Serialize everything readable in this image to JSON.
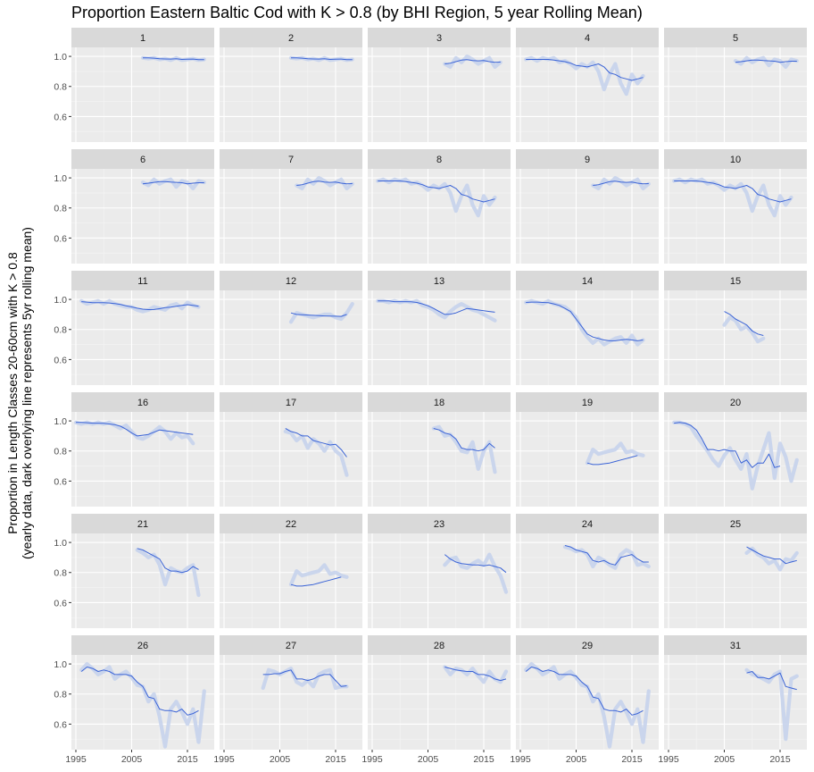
{
  "chart_data": {
    "type": "line",
    "title": "Proportion Eastern Baltic Cod with K > 0.8 (by BHI Region, 5 year Rolling Mean)",
    "ylabel_lines": [
      "Proportion in Length Classes 20-60cm with K > 0.8",
      "(yearly data, dark overlying line represents 5yr rolling  mean)"
    ],
    "xlabel": "",
    "x_ticks": [
      1995,
      2005,
      2015
    ],
    "y_ticks": [
      0.6,
      0.8,
      1.0
    ],
    "y_tick_labels": [
      "0.6",
      "0.8",
      "1.0"
    ],
    "xlim": [
      1994.2,
      2019.8
    ],
    "ylim": [
      0.43,
      1.06
    ],
    "grid": true,
    "series_style": {
      "yearly": "#c6d3ec",
      "rolling_mean": "#3a63d6"
    },
    "panels": [
      {
        "label": "1",
        "start": 2007,
        "yearly": [
          0.99,
          0.985,
          0.99,
          0.98,
          0.985,
          0.975,
          0.99,
          0.975,
          0.98,
          0.985,
          0.975,
          0.98
        ],
        "rolling": [
          0.99,
          0.99,
          0.988,
          0.984,
          0.983,
          0.982,
          0.984,
          0.98,
          0.981,
          0.982,
          0.978,
          0.978
        ]
      },
      {
        "label": "2",
        "start": 2007,
        "yearly": [
          0.99,
          0.985,
          0.99,
          0.98,
          0.985,
          0.975,
          0.99,
          0.975,
          0.98,
          0.985,
          0.975,
          0.98
        ],
        "rolling": [
          0.99,
          0.99,
          0.988,
          0.984,
          0.983,
          0.982,
          0.984,
          0.98,
          0.981,
          0.982,
          0.978,
          0.978
        ]
      },
      {
        "label": "3",
        "start": 2008,
        "yearly": [
          0.95,
          0.93,
          0.99,
          0.96,
          1.0,
          0.98,
          0.95,
          0.97,
          0.99,
          0.93,
          0.96
        ],
        "rolling": [
          0.95,
          0.955,
          0.965,
          0.975,
          0.978,
          0.972,
          0.97,
          0.972,
          0.965,
          0.96,
          0.962
        ]
      },
      {
        "label": "4",
        "start": 1996,
        "yearly": [
          0.98,
          0.99,
          0.97,
          0.99,
          0.98,
          0.99,
          0.96,
          0.97,
          0.95,
          0.92,
          0.95,
          0.93,
          0.96,
          0.9,
          0.78,
          0.88,
          0.95,
          0.82,
          0.75,
          0.88,
          0.82,
          0.87
        ],
        "rolling": [
          0.98,
          0.98,
          0.98,
          0.98,
          0.98,
          0.975,
          0.97,
          0.965,
          0.955,
          0.94,
          0.935,
          0.93,
          0.94,
          0.95,
          0.93,
          0.89,
          0.88,
          0.86,
          0.85,
          0.84,
          0.85,
          0.86
        ]
      },
      {
        "label": "5",
        "start": 2007,
        "yearly": [
          0.97,
          0.95,
          0.99,
          0.96,
          0.98,
          0.99,
          0.94,
          0.98,
          0.97,
          0.93,
          0.98,
          0.97
        ],
        "rolling": [
          0.96,
          0.965,
          0.97,
          0.975,
          0.975,
          0.972,
          0.97,
          0.968,
          0.96,
          0.965,
          0.968,
          0.968
        ]
      },
      {
        "label": "6",
        "start": 2007,
        "yearly": [
          0.97,
          0.95,
          0.99,
          0.96,
          0.98,
          0.99,
          0.94,
          0.98,
          0.97,
          0.93,
          0.98,
          0.97
        ],
        "rolling": [
          0.96,
          0.965,
          0.97,
          0.975,
          0.975,
          0.972,
          0.97,
          0.968,
          0.96,
          0.965,
          0.968,
          0.968
        ]
      },
      {
        "label": "7",
        "start": 2008,
        "yearly": [
          0.95,
          0.93,
          0.99,
          0.96,
          1.0,
          0.98,
          0.95,
          0.97,
          0.99,
          0.93,
          0.96
        ],
        "rolling": [
          0.95,
          0.955,
          0.965,
          0.975,
          0.978,
          0.972,
          0.97,
          0.972,
          0.965,
          0.96,
          0.962
        ]
      },
      {
        "label": "8",
        "start": 1996,
        "yearly": [
          0.98,
          0.99,
          0.97,
          0.99,
          0.98,
          0.99,
          0.96,
          0.97,
          0.95,
          0.92,
          0.95,
          0.93,
          0.96,
          0.9,
          0.78,
          0.88,
          0.95,
          0.82,
          0.75,
          0.88,
          0.82,
          0.87
        ],
        "rolling": [
          0.98,
          0.98,
          0.98,
          0.98,
          0.98,
          0.975,
          0.97,
          0.965,
          0.955,
          0.94,
          0.935,
          0.93,
          0.94,
          0.95,
          0.93,
          0.89,
          0.88,
          0.86,
          0.85,
          0.84,
          0.85,
          0.86
        ]
      },
      {
        "label": "9",
        "start": 2008,
        "yearly": [
          0.95,
          0.93,
          0.99,
          0.96,
          1.0,
          0.98,
          0.95,
          0.97,
          0.99,
          0.93,
          0.96
        ],
        "rolling": [
          0.95,
          0.955,
          0.965,
          0.975,
          0.978,
          0.972,
          0.97,
          0.972,
          0.965,
          0.96,
          0.962
        ]
      },
      {
        "label": "10",
        "start": 1996,
        "yearly": [
          0.98,
          0.99,
          0.97,
          0.99,
          0.98,
          0.99,
          0.96,
          0.97,
          0.95,
          0.92,
          0.95,
          0.93,
          0.96,
          0.9,
          0.78,
          0.88,
          0.95,
          0.82,
          0.75,
          0.88,
          0.82,
          0.87
        ],
        "rolling": [
          0.98,
          0.98,
          0.98,
          0.98,
          0.98,
          0.975,
          0.97,
          0.965,
          0.955,
          0.94,
          0.935,
          0.93,
          0.94,
          0.95,
          0.93,
          0.89,
          0.88,
          0.86,
          0.85,
          0.84,
          0.85,
          0.86
        ]
      },
      {
        "label": "11",
        "start": 1996,
        "yearly": [
          0.99,
          0.97,
          0.98,
          0.99,
          0.97,
          0.99,
          0.97,
          0.96,
          0.95,
          0.95,
          0.93,
          0.92,
          0.93,
          0.95,
          0.94,
          0.93,
          0.96,
          0.97,
          0.94,
          0.98,
          0.96,
          0.95
        ],
        "rolling": [
          0.985,
          0.982,
          0.978,
          0.978,
          0.978,
          0.976,
          0.972,
          0.966,
          0.958,
          0.95,
          0.942,
          0.935,
          0.932,
          0.933,
          0.938,
          0.945,
          0.948,
          0.955,
          0.96,
          0.965,
          0.96,
          0.955
        ]
      },
      {
        "label": "12",
        "start": 2007,
        "yearly": [
          0.85,
          0.91,
          0.9,
          0.89,
          0.88,
          0.89,
          0.9,
          0.9,
          0.88,
          0.87,
          0.91,
          0.97
        ],
        "rolling": [
          0.91,
          0.9,
          0.898,
          0.896,
          0.894,
          0.892,
          0.89,
          0.889,
          0.888,
          0.887,
          0.9,
          null
        ]
      },
      {
        "label": "13",
        "start": 1996,
        "yearly": [
          0.99,
          0.99,
          0.98,
          0.99,
          0.98,
          0.99,
          0.98,
          0.99,
          0.96,
          0.95,
          0.93,
          0.9,
          0.88,
          0.92,
          0.95,
          0.97,
          0.95,
          0.93,
          0.92,
          0.9,
          0.88,
          0.86
        ],
        "rolling": [
          0.99,
          0.99,
          0.99,
          0.985,
          0.985,
          0.985,
          0.984,
          0.98,
          0.97,
          0.958,
          0.94,
          0.92,
          0.9,
          0.902,
          0.91,
          0.925,
          0.94,
          0.935,
          0.93,
          0.925,
          0.92,
          0.915
        ]
      },
      {
        "label": "14",
        "start": 1996,
        "yearly": [
          0.98,
          0.99,
          0.98,
          0.97,
          0.99,
          0.97,
          0.96,
          0.95,
          0.92,
          0.88,
          0.8,
          0.75,
          0.71,
          0.74,
          0.7,
          0.72,
          0.74,
          0.75,
          0.71,
          0.76,
          0.7,
          0.73
        ],
        "rolling": [
          0.98,
          0.982,
          0.982,
          0.98,
          0.978,
          0.97,
          0.96,
          0.94,
          0.92,
          0.87,
          0.82,
          0.77,
          0.75,
          0.74,
          0.73,
          0.725,
          0.725,
          0.73,
          0.735,
          0.73,
          0.725,
          0.73
        ]
      },
      {
        "label": "15",
        "start": 2005,
        "yearly": [
          0.83,
          0.88,
          0.86,
          0.8,
          0.82,
          0.78,
          0.72,
          0.74
        ],
        "rolling": [
          0.92,
          0.9,
          0.87,
          0.85,
          0.83,
          0.79,
          0.77,
          0.76
        ]
      },
      {
        "label": "16",
        "start": 1995,
        "yearly": [
          0.99,
          0.98,
          0.99,
          0.98,
          0.99,
          0.98,
          0.99,
          0.97,
          0.95,
          0.97,
          0.93,
          0.89,
          0.88,
          0.9,
          0.93,
          0.96,
          0.93,
          0.88,
          0.92,
          0.89,
          0.9,
          0.85
        ],
        "rolling": [
          0.99,
          0.99,
          0.988,
          0.985,
          0.985,
          0.984,
          0.98,
          0.975,
          0.965,
          0.945,
          0.92,
          0.9,
          0.905,
          0.91,
          0.925,
          0.94,
          0.935,
          0.93,
          0.925,
          0.92,
          0.915,
          0.91
        ]
      },
      {
        "label": "17",
        "start": 2006,
        "yearly": [
          0.93,
          0.92,
          0.87,
          0.9,
          0.82,
          0.88,
          0.85,
          0.8,
          0.86,
          0.8,
          0.77,
          0.64
        ],
        "rolling": [
          0.95,
          0.93,
          0.92,
          0.9,
          0.9,
          0.87,
          0.86,
          0.85,
          0.84,
          0.845,
          0.81,
          0.76
        ]
      },
      {
        "label": "18",
        "start": 2006,
        "yearly": [
          0.95,
          0.96,
          0.9,
          0.91,
          0.86,
          0.8,
          0.79,
          0.86,
          0.68,
          0.8,
          0.86,
          0.66
        ],
        "rolling": [
          0.95,
          0.94,
          0.92,
          0.91,
          0.88,
          0.82,
          0.81,
          0.81,
          0.8,
          0.81,
          0.85,
          0.82
        ]
      },
      {
        "label": "19",
        "start": 2007,
        "yearly": [
          0.72,
          0.81,
          0.78,
          0.79,
          0.8,
          0.81,
          0.85,
          0.79,
          0.8,
          0.78,
          0.77
        ],
        "rolling": [
          0.72,
          0.71,
          0.71,
          0.715,
          0.72,
          0.73,
          0.74,
          0.75,
          0.76,
          0.77
        ]
      },
      {
        "label": "20",
        "start": 1996,
        "yearly": [
          0.99,
          0.99,
          0.98,
          0.96,
          0.9,
          0.85,
          0.8,
          0.74,
          0.7,
          0.77,
          0.82,
          0.74,
          0.68,
          0.78,
          0.55,
          0.7,
          0.81,
          0.92,
          0.62,
          0.85,
          0.76,
          0.6,
          0.74
        ],
        "rolling": [
          0.985,
          0.99,
          0.985,
          0.97,
          0.94,
          0.88,
          0.81,
          0.81,
          0.8,
          0.81,
          0.8,
          0.8,
          0.72,
          0.74,
          0.69,
          0.72,
          0.72,
          0.78,
          0.69,
          0.7
        ]
      },
      {
        "label": "21",
        "start": 2006,
        "yearly": [
          0.95,
          0.93,
          0.9,
          0.92,
          0.85,
          0.72,
          0.83,
          0.81,
          0.8,
          0.83,
          0.85,
          0.65
        ],
        "rolling": [
          0.96,
          0.95,
          0.93,
          0.91,
          0.89,
          0.83,
          0.81,
          0.81,
          0.8,
          0.81,
          0.84,
          0.82
        ]
      },
      {
        "label": "22",
        "start": 2007,
        "yearly": [
          0.72,
          0.81,
          0.78,
          0.79,
          0.8,
          0.81,
          0.85,
          0.79,
          0.8,
          0.78,
          0.77
        ],
        "rolling": [
          0.72,
          0.71,
          0.71,
          0.715,
          0.72,
          0.73,
          0.74,
          0.75,
          0.76,
          0.77
        ]
      },
      {
        "label": "23",
        "start": 2008,
        "yearly": [
          0.85,
          0.89,
          0.9,
          0.84,
          0.83,
          0.86,
          0.88,
          0.85,
          0.92,
          0.84,
          0.78,
          0.67
        ],
        "rolling": [
          0.92,
          0.89,
          0.87,
          0.86,
          0.855,
          0.85,
          0.85,
          0.845,
          0.85,
          0.84,
          0.83,
          0.8
        ]
      },
      {
        "label": "24",
        "start": 2003,
        "yearly": [
          0.97,
          0.96,
          0.94,
          0.95,
          0.92,
          0.84,
          0.9,
          0.88,
          0.85,
          0.83,
          0.92,
          0.95,
          0.93,
          0.85,
          0.86,
          0.84
        ],
        "rolling": [
          0.98,
          0.97,
          0.95,
          0.94,
          0.93,
          0.88,
          0.87,
          0.88,
          0.86,
          0.85,
          0.9,
          0.91,
          0.92,
          0.89,
          0.87,
          0.87
        ]
      },
      {
        "label": "25",
        "start": 2009,
        "yearly": [
          0.93,
          0.96,
          0.92,
          0.9,
          0.86,
          0.88,
          0.82,
          0.89,
          0.88,
          0.93
        ],
        "rolling": [
          0.97,
          0.95,
          0.93,
          0.91,
          0.9,
          0.89,
          0.89,
          0.86,
          0.87,
          0.88
        ]
      },
      {
        "label": "26",
        "start": 1996,
        "yearly": [
          0.96,
          1.0,
          0.97,
          0.93,
          0.95,
          0.98,
          0.9,
          0.93,
          0.95,
          0.91,
          0.86,
          0.85,
          0.75,
          0.8,
          0.65,
          0.45,
          0.7,
          0.75,
          0.68,
          0.6,
          0.7,
          0.48,
          0.82
        ],
        "rolling": [
          0.95,
          0.98,
          0.97,
          0.95,
          0.96,
          0.95,
          0.93,
          0.93,
          0.93,
          0.92,
          0.88,
          0.85,
          0.78,
          0.77,
          0.7,
          0.69,
          0.69,
          0.68,
          0.7,
          0.66,
          0.67,
          0.69
        ]
      },
      {
        "label": "27",
        "start": 2002,
        "yearly": [
          0.84,
          0.96,
          0.95,
          0.93,
          0.95,
          0.97,
          0.88,
          0.86,
          0.89,
          0.85,
          0.93,
          0.95,
          0.96,
          0.84,
          0.85,
          0.85
        ],
        "rolling": [
          0.93,
          0.93,
          0.935,
          0.935,
          0.95,
          0.96,
          0.9,
          0.9,
          0.89,
          0.9,
          0.92,
          0.93,
          0.93,
          0.89,
          0.85,
          0.855
        ]
      },
      {
        "label": "28",
        "start": 2008,
        "yearly": [
          0.98,
          0.93,
          0.97,
          0.96,
          0.93,
          0.97,
          0.92,
          0.88,
          0.95,
          0.9,
          0.88,
          0.95
        ],
        "rolling": [
          0.98,
          0.97,
          0.96,
          0.955,
          0.95,
          0.95,
          0.93,
          0.93,
          0.92,
          0.9,
          0.89,
          0.9
        ]
      },
      {
        "label": "29",
        "start": 1996,
        "yearly": [
          0.96,
          1.0,
          0.97,
          0.93,
          0.95,
          0.98,
          0.9,
          0.93,
          0.95,
          0.91,
          0.86,
          0.85,
          0.75,
          0.8,
          0.65,
          0.45,
          0.7,
          0.75,
          0.68,
          0.6,
          0.7,
          0.48,
          0.82
        ],
        "rolling": [
          0.95,
          0.98,
          0.97,
          0.95,
          0.96,
          0.95,
          0.93,
          0.93,
          0.93,
          0.92,
          0.88,
          0.85,
          0.78,
          0.77,
          0.7,
          0.69,
          0.69,
          0.68,
          0.7,
          0.66,
          0.67,
          0.69
        ]
      },
      {
        "label": "31",
        "start": 2009,
        "yearly": [
          0.96,
          0.93,
          0.92,
          0.9,
          0.88,
          0.93,
          0.95,
          0.5,
          0.9,
          0.92
        ],
        "rolling": [
          0.94,
          0.95,
          0.91,
          0.91,
          0.9,
          0.92,
          0.94,
          0.85,
          0.84,
          0.83
        ]
      }
    ]
  }
}
